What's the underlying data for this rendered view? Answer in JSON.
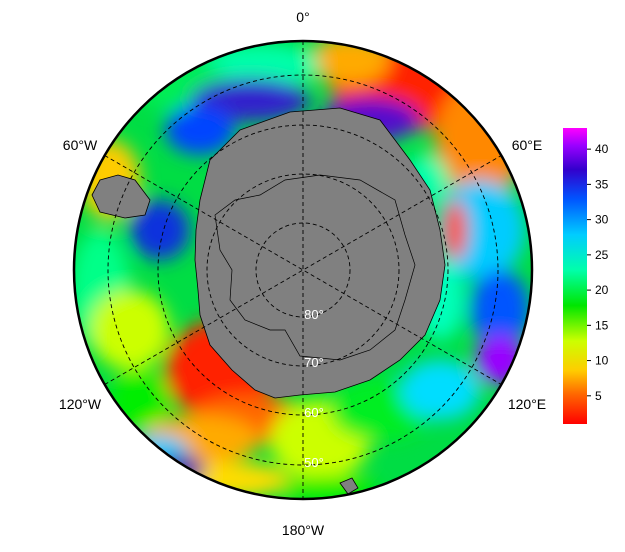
{
  "longitude_labels": {
    "top": "0°",
    "upper_left": "60°W",
    "upper_right": "60°E",
    "lower_left": "120°W",
    "lower_right": "120°E",
    "bottom": "180°W"
  },
  "latitude_labels": [
    "80°",
    "70°",
    "60°",
    "50°"
  ],
  "colorbar": {
    "ticks": [
      "5",
      "10",
      "15",
      "20",
      "25",
      "30",
      "35",
      "40"
    ],
    "range": [
      1,
      43
    ],
    "colors": [
      "#ff0000",
      "#ff6600",
      "#ffcc00",
      "#ccff00",
      "#00e600",
      "#00ffaa",
      "#00ccff",
      "#0055ff",
      "#3300cc",
      "#9900ff",
      "#ff00ff"
    ]
  },
  "land_color": "#808080",
  "projection": "south polar stereographic"
}
